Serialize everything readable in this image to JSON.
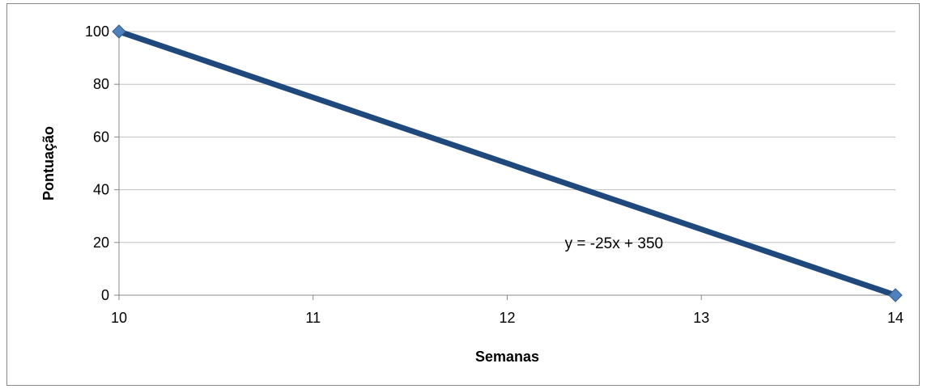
{
  "chart_data": {
    "type": "line",
    "title": "",
    "xlabel": "Semanas",
    "ylabel": "Pontuação",
    "xlim": [
      10,
      14
    ],
    "ylim": [
      0,
      100
    ],
    "x_ticks": [
      10,
      11,
      12,
      13,
      14
    ],
    "y_ticks": [
      0,
      20,
      40,
      60,
      80,
      100
    ],
    "grid": "horizontal",
    "legend": "none",
    "series": [
      {
        "x": [
          10,
          14
        ],
        "values": [
          100,
          0
        ],
        "line_color": "#1F497D",
        "marker": "diamond",
        "marker_color": "#4F81BD"
      }
    ],
    "annotations": [
      {
        "text": "y = -25x + 350",
        "x": 12.55,
        "y": 20
      }
    ]
  }
}
